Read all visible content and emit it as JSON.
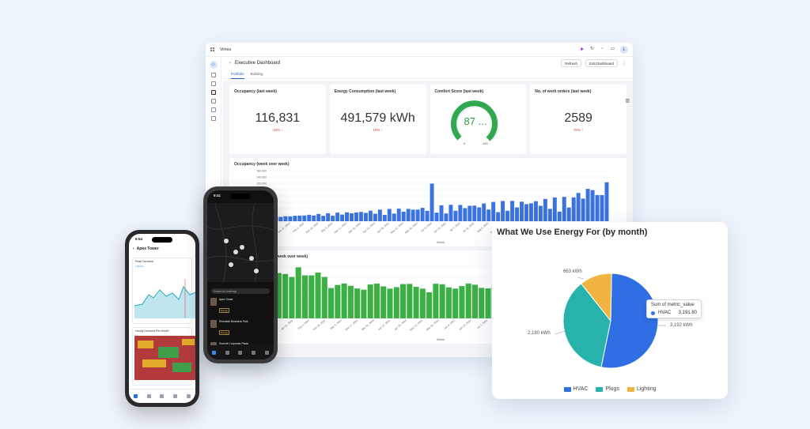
{
  "app": {
    "brand": "Vimea",
    "page_title": "Executive Dashboard",
    "refresh_label": "Refresh",
    "edit_label": "Edit Dashboard",
    "avatar_letter": "L"
  },
  "tabs": [
    {
      "label": "Portfolio"
    },
    {
      "label": "Building"
    }
  ],
  "kpis": [
    {
      "title": "Occupancy (last week)",
      "value": "116,831",
      "delta": "-22% ↓"
    },
    {
      "title": "Energy Consumption (last week)",
      "value": "491,579 kWh",
      "delta": "10% ↑"
    },
    {
      "title": "Comfort Score (last week)",
      "value": "87 ...",
      "gauge_min": "0",
      "gauge_max": "100"
    },
    {
      "title": "No. of work orders (last week)",
      "value": "2589",
      "delta": "76% ↑"
    }
  ],
  "occupancy_chart": {
    "title": "Occupancy (week over week)",
    "xlabel": "Week",
    "color": "#3a73e0",
    "y_ticks": [
      "160,000",
      "140,000",
      "120,000",
      "100,000",
      "80,000",
      "60,000",
      "40,000",
      "20,000",
      "0"
    ],
    "x_ticks": [
      "Jan 7, 2024",
      "Jan 21, 2024",
      "Feb 4, 2024",
      "Feb 18, 2024",
      "Mar 3, 2024",
      "Mar 17, 2024",
      "Mar 31, 2024",
      "Apr 14, 2024",
      "Apr 28, 2024",
      "May 12, 2024",
      "May 26, 2024",
      "Jun 9, 2024",
      "Jun 23, 2024",
      "Jul 7, 2024",
      "Jul 21, 2024",
      "Aug 4, 2024",
      "Aug 18, 2024",
      "Sep 1, 2024",
      "Sep 15, 2024",
      "Sep 29, 2024",
      "Oct 13, 2024",
      "Oct 27, 2024",
      "Nov 10, 2024",
      "Nov 24, 2024"
    ]
  },
  "energy_week_chart": {
    "title": "Energy Consumption (week over week)",
    "xlabel": "Week",
    "color": "#3cb043",
    "x_ticks": [
      "Jan 7, 2024",
      "Jan 21, 2024",
      "Feb 4, 2024",
      "Feb 18, 2024",
      "Mar 3, 2024",
      "Mar 17, 2024",
      "Mar 31, 2024",
      "Apr 14, 2024",
      "Apr 28, 2024",
      "May 12, 2024",
      "May 26, 2024",
      "Jun 9, 2024",
      "Jun 23, 2024",
      "Jul 7, 2024",
      "Jul 21, 2024",
      "Aug 4, 2024",
      "Aug 18, 2024",
      "Sep 1, 2024",
      "Sep 15, 2024",
      "Sep 29, 2024",
      "Oct 13, 2024"
    ]
  },
  "energy_card": {
    "title": "What We Use Energy For (by month)",
    "tooltip_title": "Sum of metric_value",
    "tooltip_series": "HVAC",
    "tooltip_value": "3,191.80"
  },
  "chart_data": {
    "type": "pie",
    "title": "What We Use Energy For (by month)",
    "categories": [
      "HVAC",
      "Plugs",
      "Lighting"
    ],
    "values": [
      3192,
      2180,
      663
    ],
    "labels": [
      "3,192  kWh",
      "2,180  kWh",
      "663  kWh"
    ],
    "colors": [
      "#2f6fe3",
      "#27b2ab",
      "#f2b441"
    ],
    "legend": "bottom"
  },
  "phone_light": {
    "time": "9:54",
    "building": "Apex Tower",
    "card1_title": "Peak Demand",
    "card1_value": "1.80 kw",
    "card2_title": "Hourly Demand Per Month"
  },
  "phone_dark": {
    "time": "9:41",
    "search_placeholder": "Search for buildings",
    "buildings": [
      {
        "name": "Apex Tower",
        "tag": "Energy"
      },
      {
        "name": "Riverside Business Park",
        "tag": "Energy"
      },
      {
        "name": "Summit Corporate Plaza",
        "tag": "Energy"
      }
    ]
  }
}
